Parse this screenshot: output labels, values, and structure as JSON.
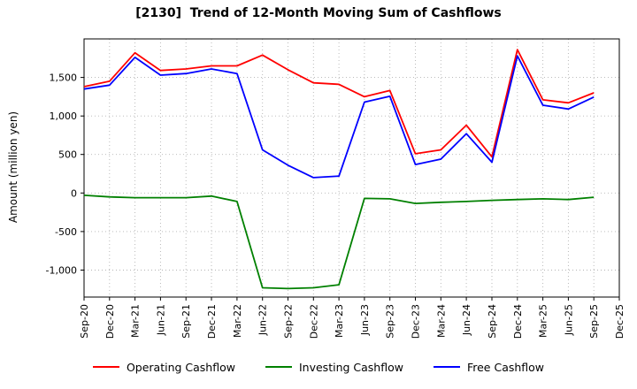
{
  "title": "[2130]  Trend of 12-Month Moving Sum of Cashflows",
  "ylabel": "Amount (million yen)",
  "legend": [
    {
      "label": "Operating Cashflow",
      "color": "#ff0000"
    },
    {
      "label": "Investing Cashflow",
      "color": "#008000"
    },
    {
      "label": "Free Cashflow",
      "color": "#0000ff"
    }
  ],
  "chart_data": {
    "type": "line",
    "x": [
      "Sep-20",
      "Dec-20",
      "Mar-21",
      "Jun-21",
      "Sep-21",
      "Dec-21",
      "Mar-22",
      "Jun-22",
      "Sep-22",
      "Dec-22",
      "Mar-23",
      "Jun-23",
      "Sep-23",
      "Dec-23",
      "Mar-24",
      "Jun-24",
      "Sep-24",
      "Dec-24",
      "Mar-25",
      "Jun-25",
      "Sep-25",
      "Dec-25"
    ],
    "series": [
      {
        "name": "Operating Cashflow",
        "color": "#ff0000",
        "values": [
          1380,
          1450,
          1820,
          1590,
          1610,
          1650,
          1650,
          1790,
          1600,
          1430,
          1410,
          1250,
          1330,
          510,
          560,
          880,
          470,
          1860,
          1210,
          1170,
          1300,
          null
        ]
      },
      {
        "name": "Investing Cashflow",
        "color": "#008000",
        "values": [
          -30,
          -50,
          -60,
          -60,
          -60,
          -40,
          -110,
          -1230,
          -1240,
          -1230,
          -1190,
          -70,
          -75,
          -135,
          -120,
          -110,
          -95,
          -85,
          -75,
          -85,
          -55,
          null
        ]
      },
      {
        "name": "Free Cashflow",
        "color": "#0000ff",
        "values": [
          1350,
          1400,
          1760,
          1530,
          1550,
          1610,
          1550,
          560,
          360,
          200,
          220,
          1180,
          1255,
          370,
          440,
          770,
          400,
          1780,
          1140,
          1090,
          1245,
          null
        ]
      }
    ],
    "ylim": [
      -1350,
      2000
    ],
    "yticks": [
      -1000,
      -500,
      0,
      500,
      1000,
      1500
    ],
    "grid": true,
    "legend_position": "bottom",
    "xlabel": "",
    "ylabel": "Amount (million yen)"
  }
}
